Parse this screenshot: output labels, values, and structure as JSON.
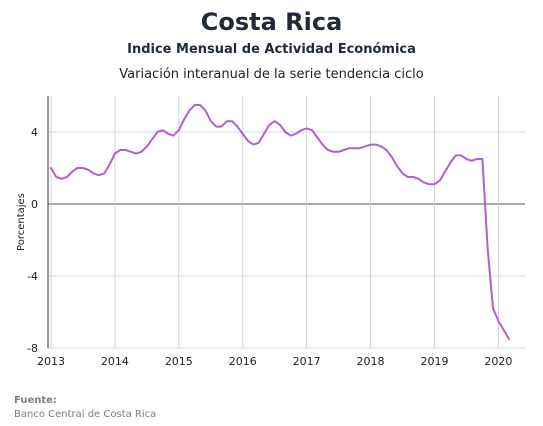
{
  "header": {
    "title": "Costa Rica",
    "subtitle": "Indice Mensual de  Actividad Económica",
    "caption": "Variación interanual de la serie tendencia ciclo"
  },
  "footer": {
    "source_label": "Fuente:",
    "source_text": "Banco Central de Costa Rica"
  },
  "colors": {
    "line": "#b25fd0",
    "grid": "#cccccc",
    "zero_line": "#555555"
  },
  "chart_data": {
    "type": "line",
    "title": "Costa Rica",
    "subtitle": "Indice Mensual de  Actividad Económica",
    "caption": "Variación interanual de la serie tendencia ciclo",
    "ylabel": "Porcentajes",
    "xlabel": "",
    "ylim": [
      -8,
      6
    ],
    "xlim": [
      "2013-01",
      "2020-06"
    ],
    "yticks": [
      4,
      0,
      -4,
      -8
    ],
    "ytick_labels": [
      "4",
      "0",
      "-4",
      "-8"
    ],
    "xticks": [
      "2013",
      "2014",
      "2015",
      "2016",
      "2017",
      "2018",
      "2019",
      "2020"
    ],
    "grid": true,
    "legend": "none",
    "series": [
      {
        "points": [
          [
            "2013-01",
            2.0
          ],
          [
            "2013-02",
            1.5
          ],
          [
            "2013-03",
            1.4
          ],
          [
            "2013-04",
            1.5
          ],
          [
            "2013-05",
            1.8
          ],
          [
            "2013-06",
            2.0
          ],
          [
            "2013-07",
            2.0
          ],
          [
            "2013-08",
            1.9
          ],
          [
            "2013-09",
            1.7
          ],
          [
            "2013-10",
            1.6
          ],
          [
            "2013-11",
            1.7
          ],
          [
            "2013-12",
            2.2
          ],
          [
            "2014-01",
            2.8
          ],
          [
            "2014-02",
            3.0
          ],
          [
            "2014-03",
            3.0
          ],
          [
            "2014-04",
            2.9
          ],
          [
            "2014-05",
            2.8
          ],
          [
            "2014-06",
            2.9
          ],
          [
            "2014-07",
            3.2
          ],
          [
            "2014-08",
            3.6
          ],
          [
            "2014-09",
            4.0
          ],
          [
            "2014-10",
            4.1
          ],
          [
            "2014-11",
            3.9
          ],
          [
            "2014-12",
            3.8
          ],
          [
            "2015-01",
            4.1
          ],
          [
            "2015-02",
            4.7
          ],
          [
            "2015-03",
            5.2
          ],
          [
            "2015-04",
            5.5
          ],
          [
            "2015-05",
            5.5
          ],
          [
            "2015-06",
            5.2
          ],
          [
            "2015-07",
            4.6
          ],
          [
            "2015-08",
            4.3
          ],
          [
            "2015-09",
            4.3
          ],
          [
            "2015-10",
            4.6
          ],
          [
            "2015-11",
            4.6
          ],
          [
            "2015-12",
            4.3
          ],
          [
            "2016-01",
            3.9
          ],
          [
            "2016-02",
            3.5
          ],
          [
            "2016-03",
            3.3
          ],
          [
            "2016-04",
            3.4
          ],
          [
            "2016-05",
            3.9
          ],
          [
            "2016-06",
            4.4
          ],
          [
            "2016-07",
            4.6
          ],
          [
            "2016-08",
            4.4
          ],
          [
            "2016-09",
            4.0
          ],
          [
            "2016-10",
            3.8
          ],
          [
            "2016-11",
            3.9
          ],
          [
            "2016-12",
            4.1
          ],
          [
            "2017-01",
            4.2
          ],
          [
            "2017-02",
            4.1
          ],
          [
            "2017-03",
            3.7
          ],
          [
            "2017-04",
            3.3
          ],
          [
            "2017-05",
            3.0
          ],
          [
            "2017-06",
            2.9
          ],
          [
            "2017-07",
            2.9
          ],
          [
            "2017-08",
            3.0
          ],
          [
            "2017-09",
            3.1
          ],
          [
            "2017-10",
            3.1
          ],
          [
            "2017-11",
            3.1
          ],
          [
            "2017-12",
            3.2
          ],
          [
            "2018-01",
            3.3
          ],
          [
            "2018-02",
            3.3
          ],
          [
            "2018-03",
            3.2
          ],
          [
            "2018-04",
            3.0
          ],
          [
            "2018-05",
            2.6
          ],
          [
            "2018-06",
            2.1
          ],
          [
            "2018-07",
            1.7
          ],
          [
            "2018-08",
            1.5
          ],
          [
            "2018-09",
            1.5
          ],
          [
            "2018-10",
            1.4
          ],
          [
            "2018-11",
            1.2
          ],
          [
            "2018-12",
            1.1
          ],
          [
            "2019-01",
            1.1
          ],
          [
            "2019-02",
            1.3
          ],
          [
            "2019-03",
            1.8
          ],
          [
            "2019-04",
            2.3
          ],
          [
            "2019-05",
            2.7
          ],
          [
            "2019-06",
            2.7
          ],
          [
            "2019-07",
            2.5
          ],
          [
            "2019-08",
            2.4
          ],
          [
            "2019-09",
            2.5
          ],
          [
            "2019-10",
            2.5
          ],
          [
            "2019-11",
            -2.5
          ],
          [
            "2019-12",
            -5.8
          ],
          [
            "2020-01",
            -6.5
          ],
          [
            "2020-02",
            -7.0
          ],
          [
            "2020-03",
            -7.5
          ]
        ]
      }
    ]
  }
}
